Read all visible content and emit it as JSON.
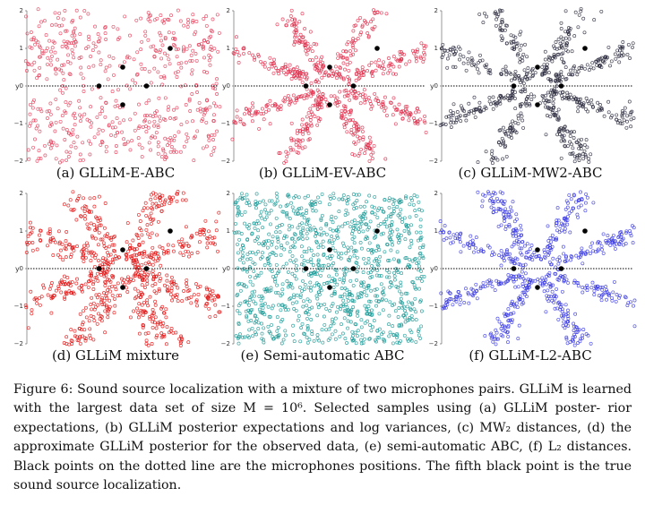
{
  "panels": [
    {
      "id": "a",
      "caption": "(a) GLLiM-E-ABC",
      "color": "#e4405a",
      "pattern": "diffuse-cross"
    },
    {
      "id": "b",
      "caption": "(b) GLLiM-EV-ABC",
      "color": "#e0304e",
      "pattern": "arms"
    },
    {
      "id": "c",
      "caption": "(c) GLLiM-MW2-ABC",
      "color": "#2b2b3f",
      "pattern": "arms"
    },
    {
      "id": "d",
      "caption": "(d) GLLiM mixture",
      "color": "#e31010",
      "pattern": "thick-arms"
    },
    {
      "id": "e",
      "caption": "(e) Semi-automatic ABC",
      "color": "#1a9a96",
      "pattern": "uniform"
    },
    {
      "id": "f",
      "caption": "(f) GLLiM-L2-ABC",
      "color": "#3a3ae0",
      "pattern": "arms"
    }
  ],
  "axis": {
    "ylabel": "y",
    "yticks": [
      "2",
      "1",
      "0",
      "−1",
      "−2"
    ]
  },
  "caption_lines": [
    "Figure 6:  Sound source localization with a mixture of two microphones pairs.  GLLiM is",
    "learned with the largest data set of size M = 10⁶. Selected samples using (a) GLLiM poster-",
    "rior expectations, (b) GLLiM posterior expectations and log variances, (c) MW₂ distances,",
    "(d) the approximate GLLiM posterior for the observed data, (e) semi-automatic ABC, (f)",
    "L₂ distances.  Black points on the dotted line are the microphones positions.  The fifth black",
    "point is the true sound source localization."
  ]
}
